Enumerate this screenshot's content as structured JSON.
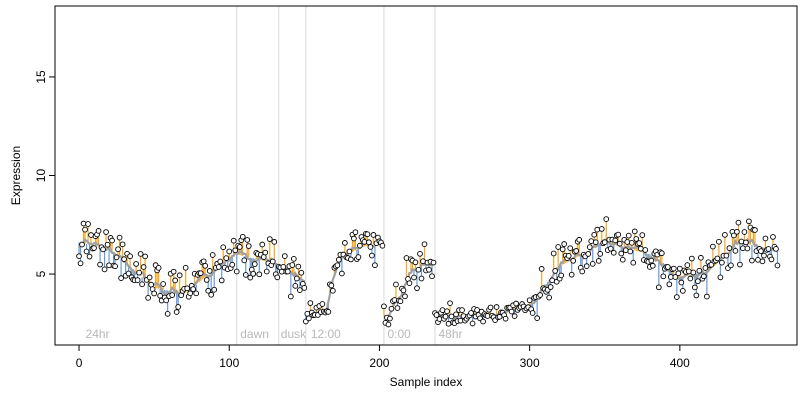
{
  "chart_data": {
    "type": "scatter",
    "title": "",
    "xlabel": "Sample index",
    "ylabel": "Expression",
    "xlim": [
      -16,
      478
    ],
    "ylim": [
      1.4,
      18.6
    ],
    "x_ticks": [
      0,
      100,
      200,
      300,
      400
    ],
    "y_ticks": [
      5,
      10,
      15
    ],
    "grid": false,
    "legend": "none",
    "colors": {
      "points_fill": "#ffffff",
      "points_stroke": "#000000",
      "trend_line": "#a0a0a0",
      "residual_up": "#f5a623",
      "residual_down": "#6a9ad6",
      "divider": "#d9d9d9",
      "region_label": "#b8b8b8"
    },
    "dividers": [
      105,
      133,
      151,
      203,
      237
    ],
    "regions": [
      {
        "label": "24hr",
        "x": 3
      },
      {
        "label": "dawn",
        "x": 106
      },
      {
        "label": "dusk",
        "x": 133
      },
      {
        "label": "12:00",
        "x": 153
      },
      {
        "label": "0:00",
        "x": 204
      },
      {
        "label": "48hr",
        "x": 238
      }
    ],
    "segments": [
      {
        "x": [
          0,
          20,
          35,
          50,
          70,
          90,
          104
        ],
        "y": [
          6.6,
          6.3,
          5.3,
          4.3,
          4.0,
          5.2,
          6.0
        ]
      },
      {
        "x": [
          105,
          132
        ],
        "y": [
          6.0,
          5.5
        ]
      },
      {
        "x": [
          133,
          150
        ],
        "y": [
          5.4,
          4.7
        ]
      },
      {
        "x": [
          151,
          158,
          165,
          168,
          175,
          190,
          202
        ],
        "y": [
          3.0,
          3.0,
          3.1,
          4.5,
          5.9,
          6.4,
          6.6
        ]
      },
      {
        "x": [
          203,
          206,
          215,
          222,
          236
        ],
        "y": [
          2.9,
          2.9,
          4.0,
          5.2,
          5.6
        ]
      },
      {
        "x": [
          237,
          250,
          260,
          275,
          290,
          300,
          320,
          350,
          380,
          400,
          420,
          440,
          465
        ],
        "y": [
          2.9,
          2.8,
          3.0,
          2.9,
          3.2,
          3.4,
          5.4,
          6.6,
          6.0,
          4.8,
          5.2,
          6.6,
          6.2
        ]
      }
    ],
    "noise_amplitude": 0.85,
    "n_points": 466
  }
}
